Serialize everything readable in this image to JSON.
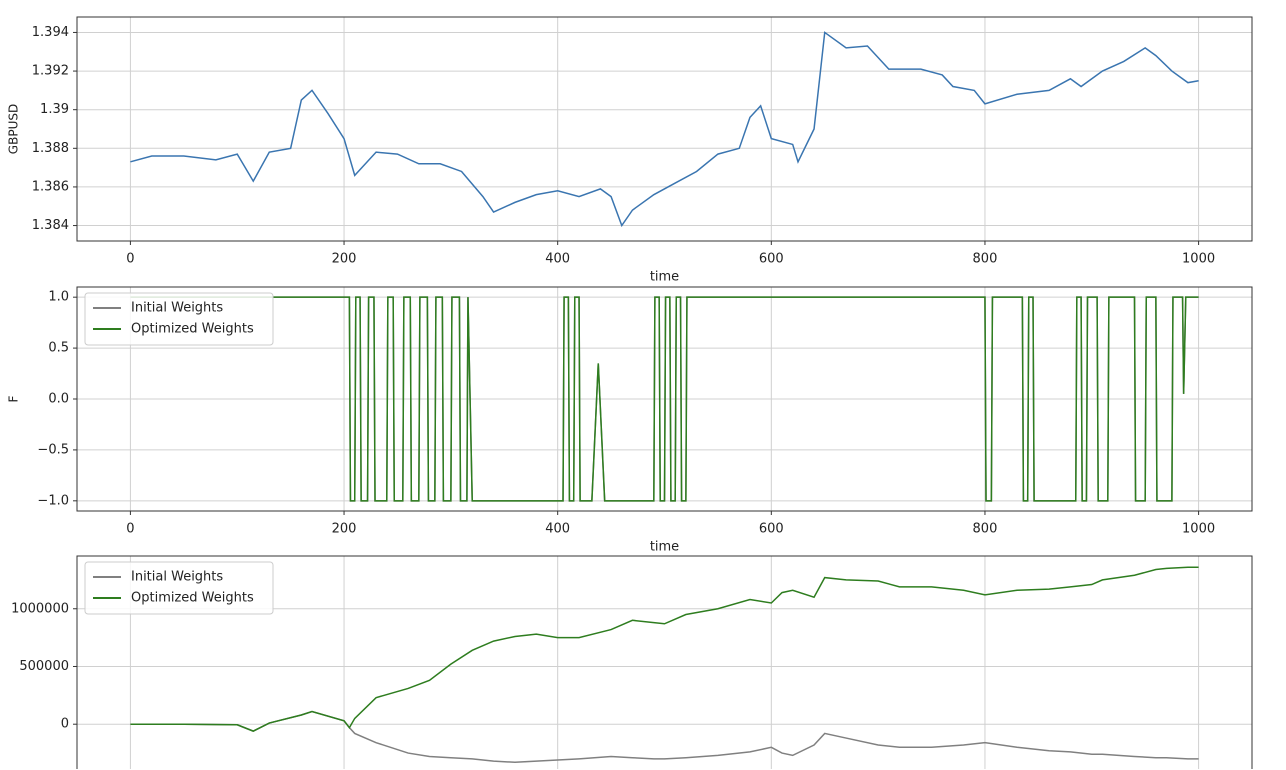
{
  "chart_data": [
    {
      "type": "line",
      "ylabel": "GBPUSD",
      "xlabel": "time",
      "xlim": [
        -50,
        1050
      ],
      "ylim": [
        1.3832,
        1.3948
      ],
      "xticks": [
        0,
        200,
        400,
        600,
        800,
        1000
      ],
      "yticks": [
        1.384,
        1.386,
        1.388,
        1.39,
        1.392,
        1.394
      ],
      "grid": true,
      "x": [
        0,
        20,
        50,
        80,
        100,
        115,
        130,
        150,
        160,
        170,
        185,
        200,
        210,
        230,
        250,
        270,
        290,
        310,
        330,
        340,
        360,
        380,
        400,
        420,
        440,
        450,
        460,
        470,
        490,
        510,
        530,
        550,
        570,
        580,
        590,
        600,
        620,
        625,
        640,
        650,
        670,
        690,
        710,
        740,
        760,
        770,
        790,
        800,
        830,
        860,
        880,
        890,
        910,
        930,
        950,
        960,
        975,
        990,
        1000
      ],
      "series": [
        {
          "color": "#3a75b0",
          "values": [
            1.3873,
            1.3876,
            1.3876,
            1.3874,
            1.3877,
            1.3863,
            1.3878,
            1.388,
            1.3905,
            1.391,
            1.3898,
            1.3885,
            1.3866,
            1.3878,
            1.3877,
            1.3872,
            1.3872,
            1.3868,
            1.3855,
            1.3847,
            1.3852,
            1.3856,
            1.3858,
            1.3855,
            1.3859,
            1.3855,
            1.384,
            1.3848,
            1.3856,
            1.3862,
            1.3868,
            1.3877,
            1.388,
            1.3896,
            1.3902,
            1.3885,
            1.3882,
            1.3873,
            1.389,
            1.394,
            1.3932,
            1.3933,
            1.3921,
            1.3921,
            1.3918,
            1.3912,
            1.391,
            1.3903,
            1.3908,
            1.391,
            1.3916,
            1.3912,
            1.392,
            1.3925,
            1.3932,
            1.3928,
            1.392,
            1.3914,
            1.3915
          ]
        }
      ]
    },
    {
      "type": "line",
      "ylabel": "F",
      "xlabel": "time",
      "legend": "upper left",
      "xlim": [
        -50,
        1050
      ],
      "ylim": [
        -1.1,
        1.1
      ],
      "xticks": [
        0,
        200,
        400,
        600,
        800,
        1000
      ],
      "yticks": [
        {
          "value": -1,
          "label": "−1.0"
        },
        {
          "value": -0.5,
          "label": "−0.5"
        },
        {
          "value": 0,
          "label": "0.0"
        },
        {
          "value": 0.5,
          "label": "0.5"
        },
        {
          "value": 1,
          "label": "1.0"
        }
      ],
      "grid": true,
      "x": [
        0,
        205,
        206,
        210,
        211,
        215,
        216,
        222,
        223,
        228,
        229,
        240,
        241,
        246,
        247,
        255,
        256,
        262,
        263,
        270,
        271,
        278,
        279,
        285,
        286,
        292,
        293,
        300,
        301,
        308,
        309,
        315,
        316,
        320,
        405,
        406,
        410,
        411,
        415,
        416,
        420,
        421,
        432,
        438,
        444,
        470,
        490,
        491,
        495,
        496,
        500,
        501,
        505,
        506,
        510,
        511,
        515,
        516,
        520,
        521,
        800,
        801,
        806,
        807,
        835,
        836,
        840,
        841,
        845,
        846,
        885,
        886,
        890,
        891,
        895,
        896,
        905,
        906,
        915,
        916,
        940,
        941,
        950,
        951,
        960,
        961,
        975,
        976,
        985,
        986,
        988,
        1000
      ],
      "series": [
        {
          "name": "Initial Weights",
          "color": "#808080",
          "values": [
            1,
            1,
            -1,
            -1,
            1,
            1,
            -1,
            -1,
            1,
            1,
            -1,
            -1,
            1,
            1,
            -1,
            -1,
            1,
            1,
            -1,
            -1,
            1,
            1,
            -1,
            -1,
            1,
            1,
            -1,
            -1,
            1,
            1,
            -1,
            -1,
            1,
            -1,
            -1,
            1,
            1,
            -1,
            -1,
            1,
            1,
            -1,
            -1,
            0.35,
            -1,
            -1,
            -1,
            1,
            1,
            -1,
            -1,
            1,
            1,
            -1,
            -1,
            1,
            1,
            -1,
            -1,
            1,
            1,
            -1,
            -1,
            1,
            1,
            -1,
            -1,
            1,
            1,
            -1,
            -1,
            1,
            1,
            -1,
            -1,
            1,
            1,
            -1,
            -1,
            1,
            1,
            -1,
            -1,
            1,
            1,
            -1,
            -1,
            1,
            1,
            0.05,
            1,
            1
          ]
        },
        {
          "name": "Optimized Weights",
          "color": "#2e7d1f",
          "values": [
            1,
            1,
            -1,
            -1,
            1,
            1,
            -1,
            -1,
            1,
            1,
            -1,
            -1,
            1,
            1,
            -1,
            -1,
            1,
            1,
            -1,
            -1,
            1,
            1,
            -1,
            -1,
            1,
            1,
            -1,
            -1,
            1,
            1,
            -1,
            -1,
            1,
            -1,
            -1,
            1,
            1,
            -1,
            -1,
            1,
            1,
            -1,
            -1,
            0.35,
            -1,
            -1,
            -1,
            1,
            1,
            -1,
            -1,
            1,
            1,
            -1,
            -1,
            1,
            1,
            -1,
            -1,
            1,
            1,
            -1,
            -1,
            1,
            1,
            -1,
            -1,
            1,
            1,
            -1,
            -1,
            1,
            1,
            -1,
            -1,
            1,
            1,
            -1,
            -1,
            1,
            1,
            -1,
            -1,
            1,
            1,
            -1,
            -1,
            1,
            1,
            0.05,
            1,
            1
          ]
        }
      ]
    },
    {
      "type": "line",
      "legend": "upper left",
      "xlim": [
        -50,
        1050
      ],
      "ylim": [
        -388000,
        1457000
      ],
      "xticks": [
        0,
        200,
        400,
        600,
        800,
        1000
      ],
      "yticks": [
        0,
        500000,
        1000000
      ],
      "grid": true,
      "x": [
        0,
        50,
        100,
        115,
        130,
        160,
        170,
        200,
        205,
        210,
        230,
        260,
        280,
        300,
        320,
        340,
        360,
        380,
        400,
        420,
        450,
        470,
        490,
        500,
        520,
        550,
        580,
        600,
        610,
        620,
        640,
        650,
        670,
        700,
        720,
        750,
        780,
        800,
        830,
        860,
        880,
        900,
        910,
        940,
        960,
        970,
        990,
        1000
      ],
      "series": [
        {
          "name": "Initial Weights",
          "color": "#808080",
          "values": [
            0,
            0,
            -5000,
            -60000,
            10000,
            80000,
            110000,
            30000,
            -30000,
            -80000,
            -160000,
            -250000,
            -280000,
            -290000,
            -300000,
            -320000,
            -330000,
            -320000,
            -310000,
            -300000,
            -280000,
            -290000,
            -300000,
            -300000,
            -290000,
            -270000,
            -240000,
            -200000,
            -250000,
            -270000,
            -180000,
            -80000,
            -120000,
            -180000,
            -200000,
            -200000,
            -180000,
            -160000,
            -200000,
            -230000,
            -240000,
            -260000,
            -260000,
            -280000,
            -290000,
            -290000,
            -300000,
            -300000
          ]
        },
        {
          "name": "Optimized Weights",
          "color": "#2e7d1f",
          "values": [
            0,
            0,
            -5000,
            -60000,
            10000,
            80000,
            110000,
            30000,
            -30000,
            50000,
            230000,
            310000,
            380000,
            520000,
            640000,
            720000,
            760000,
            780000,
            750000,
            750000,
            820000,
            900000,
            880000,
            870000,
            950000,
            1000000,
            1080000,
            1050000,
            1140000,
            1160000,
            1100000,
            1270000,
            1250000,
            1240000,
            1190000,
            1190000,
            1160000,
            1120000,
            1160000,
            1170000,
            1190000,
            1210000,
            1250000,
            1290000,
            1340000,
            1350000,
            1360000,
            1360000
          ]
        }
      ]
    }
  ]
}
